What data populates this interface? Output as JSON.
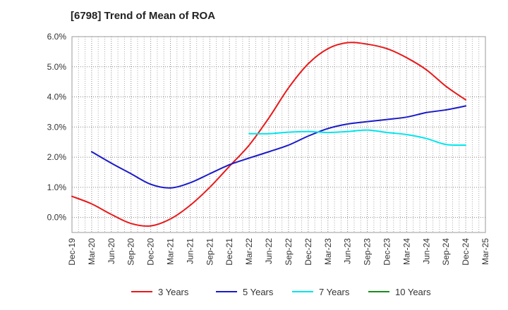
{
  "chart_data": {
    "type": "line",
    "title": "[6798]  Trend of Mean of ROA",
    "xlabel": "",
    "ylabel": "",
    "ylim": [
      -0.5,
      6.0
    ],
    "yticks": [
      "0.0%",
      "1.0%",
      "2.0%",
      "3.0%",
      "4.0%",
      "5.0%",
      "6.0%"
    ],
    "categories": [
      "Dec-19",
      "Mar-20",
      "Jun-20",
      "Sep-20",
      "Dec-20",
      "Mar-21",
      "Jun-21",
      "Sep-21",
      "Dec-21",
      "Mar-22",
      "Jun-22",
      "Sep-22",
      "Dec-22",
      "Mar-23",
      "Jun-23",
      "Sep-23",
      "Dec-23",
      "Mar-24",
      "Jun-24",
      "Sep-24",
      "Dec-24",
      "Mar-25"
    ],
    "grid": true,
    "legend_position": "bottom",
    "series": [
      {
        "name": "3 Years",
        "color": "#e8191a",
        "values": [
          0.7,
          0.45,
          0.1,
          -0.2,
          -0.28,
          -0.05,
          0.4,
          1.0,
          1.7,
          2.4,
          3.3,
          4.3,
          5.1,
          5.6,
          5.8,
          5.75,
          5.6,
          5.3,
          4.9,
          4.35,
          3.9,
          null
        ]
      },
      {
        "name": "5 Years",
        "color": "#1a1ac8",
        "values": [
          null,
          2.18,
          1.8,
          1.45,
          1.1,
          0.98,
          1.15,
          1.45,
          1.75,
          1.97,
          2.18,
          2.4,
          2.7,
          2.95,
          3.1,
          3.18,
          3.25,
          3.33,
          3.48,
          3.57,
          3.7,
          null
        ]
      },
      {
        "name": "7 Years",
        "color": "#00e5ee",
        "values": [
          null,
          null,
          null,
          null,
          null,
          null,
          null,
          null,
          null,
          2.78,
          2.78,
          2.83,
          2.85,
          2.82,
          2.85,
          2.9,
          2.82,
          2.75,
          2.62,
          2.42,
          2.4,
          null
        ]
      },
      {
        "name": "10 Years",
        "color": "#1a8c1a",
        "values": [
          null,
          null,
          null,
          null,
          null,
          null,
          null,
          null,
          null,
          null,
          null,
          null,
          null,
          null,
          null,
          null,
          null,
          null,
          null,
          null,
          null,
          null
        ]
      }
    ]
  }
}
